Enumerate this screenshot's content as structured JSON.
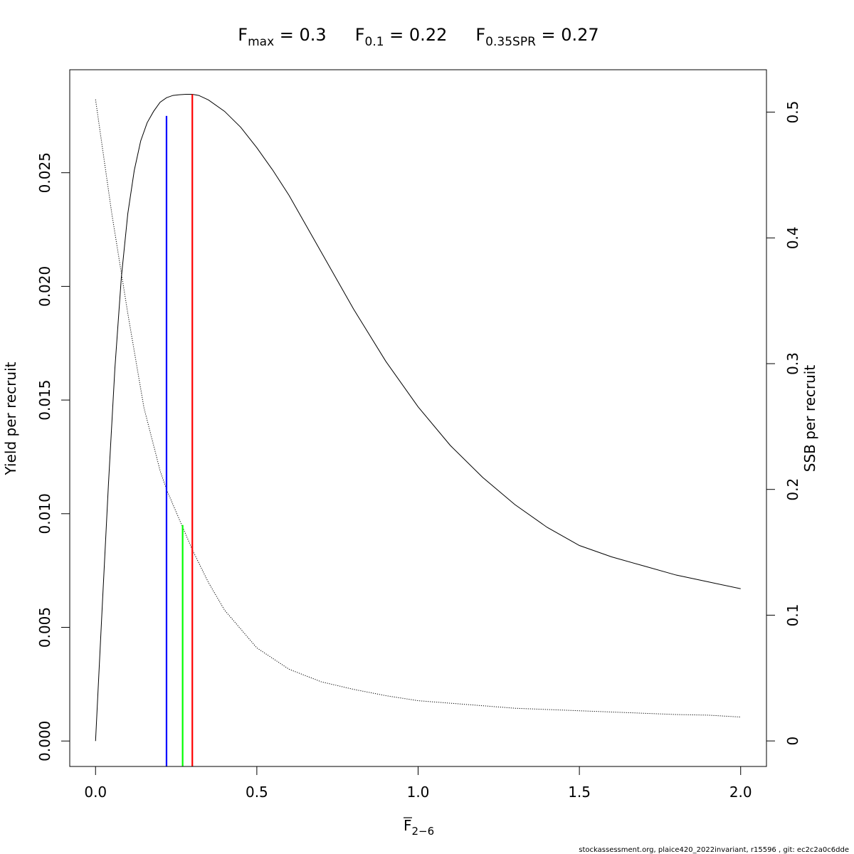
{
  "title": {
    "fmax": {
      "label": "F",
      "sub": "max",
      "eq": " = 0.3"
    },
    "f01": {
      "label": "F",
      "sub": "0.1",
      "eq": " = 0.22"
    },
    "f35": {
      "label": "F",
      "sub": "0.35SPR",
      "eq": " = 0.27"
    }
  },
  "xlabel": {
    "main": "F",
    "sub": "2−6"
  },
  "ylabel_left": "Yield per recruit",
  "ylabel_right": "SSB per recruit",
  "footer": "stockassessment.org, plaice420_2022invariant, r15596 , git: ec2c2a0c6dde",
  "chart_data": {
    "type": "line",
    "xlim": [
      -0.08,
      2.08
    ],
    "x_ticks": [
      0.0,
      0.5,
      1.0,
      1.5,
      2.0
    ],
    "x_tick_labels": [
      "0.0",
      "0.5",
      "1.0",
      "1.5",
      "2.0"
    ],
    "y_left_lim": [
      -0.00112,
      0.02953
    ],
    "y_left_ticks": [
      0.0,
      0.005,
      0.01,
      0.015,
      0.02,
      0.025
    ],
    "y_left_tick_labels": [
      "0.000",
      "0.005",
      "0.010",
      "0.015",
      "0.020",
      "0.025"
    ],
    "y_right_lim": [
      -0.0203,
      0.5337
    ],
    "y_right_ticks": [
      0,
      0.1,
      0.2,
      0.3,
      0.4,
      0.5
    ],
    "y_right_tick_labels": [
      "0",
      "0.1",
      "0.2",
      "0.3",
      "0.4",
      "0.5"
    ],
    "grid": false,
    "series": [
      {
        "axis": "left",
        "style": "solid",
        "color": "#000000",
        "x": [
          0,
          0.02,
          0.04,
          0.06,
          0.08,
          0.1,
          0.12,
          0.14,
          0.16,
          0.18,
          0.2,
          0.22,
          0.24,
          0.26,
          0.28,
          0.3,
          0.32,
          0.35,
          0.4,
          0.45,
          0.5,
          0.55,
          0.6,
          0.7,
          0.8,
          0.9,
          1.0,
          1.1,
          1.2,
          1.3,
          1.4,
          1.5,
          1.6,
          1.7,
          1.8,
          1.9,
          2.0
        ],
        "y": [
          0.0,
          0.0057,
          0.0113,
          0.0164,
          0.0204,
          0.0232,
          0.0251,
          0.0264,
          0.0272,
          0.0277,
          0.0281,
          0.0283,
          0.0284,
          0.02843,
          0.02845,
          0.02845,
          0.0284,
          0.0282,
          0.0277,
          0.027,
          0.0261,
          0.0251,
          0.024,
          0.0215,
          0.019,
          0.0167,
          0.0147,
          0.013,
          0.0116,
          0.0104,
          0.0094,
          0.0086,
          0.0081,
          0.0077,
          0.0073,
          0.007,
          0.0067
        ]
      },
      {
        "axis": "right",
        "style": "dotted",
        "color": "#000000",
        "x": [
          0,
          0.05,
          0.1,
          0.15,
          0.2,
          0.22,
          0.25,
          0.27,
          0.3,
          0.35,
          0.4,
          0.5,
          0.6,
          0.7,
          0.8,
          0.9,
          1.0,
          1.1,
          1.2,
          1.3,
          1.4,
          1.5,
          1.6,
          1.7,
          1.8,
          1.9,
          2.0
        ],
        "y": [
          0.51,
          0.42,
          0.34,
          0.265,
          0.215,
          0.2,
          0.182,
          0.17,
          0.152,
          0.126,
          0.104,
          0.074,
          0.057,
          0.047,
          0.041,
          0.036,
          0.032,
          0.03,
          0.028,
          0.026,
          0.025,
          0.024,
          0.023,
          0.022,
          0.021,
          0.0205,
          0.019
        ]
      }
    ],
    "reference_lines": [
      {
        "name": "F0.1",
        "x": 0.22,
        "y_top_left_axis": 0.0275,
        "color": "#0000ff"
      },
      {
        "name": "F0.35SPR",
        "x": 0.27,
        "y_top_left_axis": 0.0095,
        "color": "#00ff00"
      },
      {
        "name": "Fmax",
        "x": 0.3,
        "y_top_left_axis": 0.02845,
        "color": "#ff0000"
      }
    ]
  }
}
